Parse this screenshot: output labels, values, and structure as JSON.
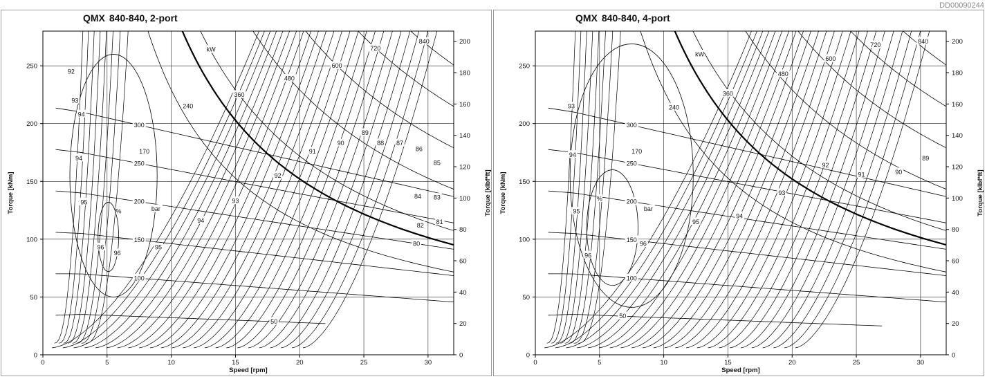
{
  "doc_code": "DD00090244",
  "chart_data": [
    {
      "type": "line",
      "title_bold": "QMX",
      "title_rest": "840-840, 2-port",
      "xlabel": "Speed [rpm]",
      "ylabel": "Torque [kNm]",
      "ylabel_right": "Torque [klbf*ft]",
      "xlim": [
        0,
        32
      ],
      "ylim": [
        0,
        280
      ],
      "ylim_right_klbfft": [
        0,
        206.5
      ],
      "x_ticks": [
        0,
        5,
        10,
        15,
        20,
        25,
        30
      ],
      "y_ticks": [
        0,
        50,
        100,
        150,
        200,
        250
      ],
      "y_ticks_right": [
        0,
        20,
        40,
        60,
        80,
        100,
        120,
        140,
        160,
        180,
        200
      ],
      "grid": true,
      "power_limit_curve": {
        "description": "max continuous power",
        "kw": 170,
        "x_start": 5.8,
        "x_end": 32
      },
      "power_curves_kw": [
        {
          "label": "240",
          "kw": 240,
          "label_at": [
            11.3,
            215
          ]
        },
        {
          "label": "360",
          "kw": 360,
          "label_at": [
            15.3,
            225
          ]
        },
        {
          "label": "480",
          "kw": 480,
          "label_at": [
            19.2,
            239
          ]
        },
        {
          "label": "600",
          "kw": 600,
          "label_at": [
            22.9,
            250
          ]
        },
        {
          "label": "720",
          "kw": 720,
          "label_at": [
            25.9,
            265
          ]
        },
        {
          "label": "840",
          "kw": 840,
          "label_at": [
            29.7,
            271
          ]
        }
      ],
      "kw_label": {
        "text": "kW",
        "at": [
          13.1,
          264
        ]
      },
      "pressure_curves_bar": [
        {
          "label": "50",
          "p": 50,
          "x_end": 22
        },
        {
          "label": "100",
          "p": 100,
          "x_end": 32
        },
        {
          "label": "150",
          "p": 150,
          "x_end": 32
        },
        {
          "label": "200",
          "p": 200,
          "x_end": 32
        },
        {
          "label": "250",
          "p": 250,
          "x_end": 32
        },
        {
          "label": "300",
          "p": 300,
          "x_end": 32
        }
      ],
      "pressure_unit_label": "bar",
      "efficiency_percent_labels": [
        {
          "text": "92",
          "at": [
            2.2,
            245
          ]
        },
        {
          "text": "93",
          "at": [
            2.5,
            220
          ]
        },
        {
          "text": "94",
          "at": [
            3.0,
            208
          ]
        },
        {
          "text": "94",
          "at": [
            2.8,
            170
          ]
        },
        {
          "text": "95",
          "at": [
            3.2,
            132
          ]
        },
        {
          "text": "96",
          "at": [
            4.5,
            93
          ]
        },
        {
          "text": "96",
          "at": [
            5.8,
            88
          ]
        },
        {
          "text": "95",
          "at": [
            9.0,
            93
          ]
        },
        {
          "text": "94",
          "at": [
            12.3,
            116
          ]
        },
        {
          "text": "93",
          "at": [
            15.0,
            133
          ]
        },
        {
          "text": "92",
          "at": [
            18.3,
            155
          ]
        },
        {
          "text": "91",
          "at": [
            21.0,
            176
          ]
        },
        {
          "text": "90",
          "at": [
            23.2,
            183
          ]
        },
        {
          "text": "89",
          "at": [
            25.1,
            192
          ]
        },
        {
          "text": "88",
          "at": [
            26.3,
            183
          ]
        },
        {
          "text": "87",
          "at": [
            27.8,
            183
          ]
        },
        {
          "text": "86",
          "at": [
            29.3,
            178
          ]
        },
        {
          "text": "85",
          "at": [
            30.7,
            166
          ]
        },
        {
          "text": "84",
          "at": [
            29.2,
            137
          ]
        },
        {
          "text": "83",
          "at": [
            30.7,
            136
          ]
        },
        {
          "text": "82",
          "at": [
            29.4,
            112
          ]
        },
        {
          "text": "81",
          "at": [
            30.9,
            115
          ]
        },
        {
          "text": "80",
          "at": [
            29.1,
            96
          ]
        }
      ],
      "percent_label": {
        "text": "%",
        "at": [
          5.9,
          124
        ]
      },
      "efficiency_contours": [
        {
          "label": "96",
          "kind": "closed",
          "cx": 5.1,
          "cy": 102,
          "rx": 0.8,
          "ry": 30
        },
        {
          "label": "95",
          "kind": "closed",
          "cx": 5.5,
          "cy": 155,
          "rx": 3.4,
          "ry": 105
        }
      ]
    },
    {
      "type": "line",
      "title_bold": "QMX",
      "title_rest": "840-840, 4-port",
      "xlabel": "Speed [rpm]",
      "ylabel": "Torque [kNm]",
      "ylabel_right": "Torque [klbf*ft]",
      "xlim": [
        0,
        32
      ],
      "ylim": [
        0,
        280
      ],
      "ylim_right_klbfft": [
        0,
        206.5
      ],
      "x_ticks": [
        0,
        5,
        10,
        15,
        20,
        25,
        30
      ],
      "y_ticks": [
        0,
        50,
        100,
        150,
        200,
        250
      ],
      "y_ticks_right": [
        0,
        20,
        40,
        60,
        80,
        100,
        120,
        140,
        160,
        180,
        200
      ],
      "grid": true,
      "power_limit_curve": {
        "description": "max continuous power",
        "kw": 170,
        "x_start": 5.8,
        "x_end": 32
      },
      "power_curves_kw": [
        {
          "label": "240",
          "kw": 240,
          "label_at": [
            10.8,
            214
          ]
        },
        {
          "label": "360",
          "kw": 360,
          "label_at": [
            15.0,
            226
          ]
        },
        {
          "label": "480",
          "kw": 480,
          "label_at": [
            19.3,
            243
          ]
        },
        {
          "label": "600",
          "kw": 600,
          "label_at": [
            23.0,
            256
          ]
        },
        {
          "label": "720",
          "kw": 720,
          "label_at": [
            26.5,
            268
          ]
        },
        {
          "label": "840",
          "kw": 840,
          "label_at": [
            30.2,
            271
          ]
        }
      ],
      "kw_label": {
        "text": "kW",
        "at": [
          12.8,
          260
        ]
      },
      "pressure_curves_bar": [
        {
          "label": "50",
          "p": 50,
          "x_end": 27
        },
        {
          "label": "100",
          "p": 100,
          "x_end": 32
        },
        {
          "label": "150",
          "p": 150,
          "x_end": 32
        },
        {
          "label": "200",
          "p": 200,
          "x_end": 32
        },
        {
          "label": "250",
          "p": 250,
          "x_end": 32
        },
        {
          "label": "300",
          "p": 300,
          "x_end": 32
        }
      ],
      "pressure_unit_label": "bar",
      "efficiency_percent_labels": [
        {
          "text": "93",
          "at": [
            2.8,
            215
          ]
        },
        {
          "text": "94",
          "at": [
            2.9,
            173
          ]
        },
        {
          "text": "95",
          "at": [
            3.2,
            124
          ]
        },
        {
          "text": "96",
          "at": [
            4.1,
            86
          ]
        },
        {
          "text": "96",
          "at": [
            8.4,
            96
          ]
        },
        {
          "text": "95",
          "at": [
            12.5,
            115
          ]
        },
        {
          "text": "94",
          "at": [
            15.9,
            120
          ]
        },
        {
          "text": "93",
          "at": [
            19.2,
            140
          ]
        },
        {
          "text": "92",
          "at": [
            22.6,
            164
          ]
        },
        {
          "text": "91",
          "at": [
            25.4,
            156
          ]
        },
        {
          "text": "90",
          "at": [
            28.3,
            158
          ]
        },
        {
          "text": "89",
          "at": [
            30.4,
            170
          ]
        }
      ],
      "percent_label": {
        "text": "%",
        "at": [
          5.0,
          135
        ]
      },
      "efficiency_contours": [
        {
          "label": "96",
          "kind": "closed",
          "cx": 6.0,
          "cy": 110,
          "rx": 2.0,
          "ry": 50
        },
        {
          "label": "95",
          "kind": "closed",
          "cx": 7.5,
          "cy": 155,
          "rx": 4.8,
          "ry": 114
        }
      ]
    }
  ]
}
